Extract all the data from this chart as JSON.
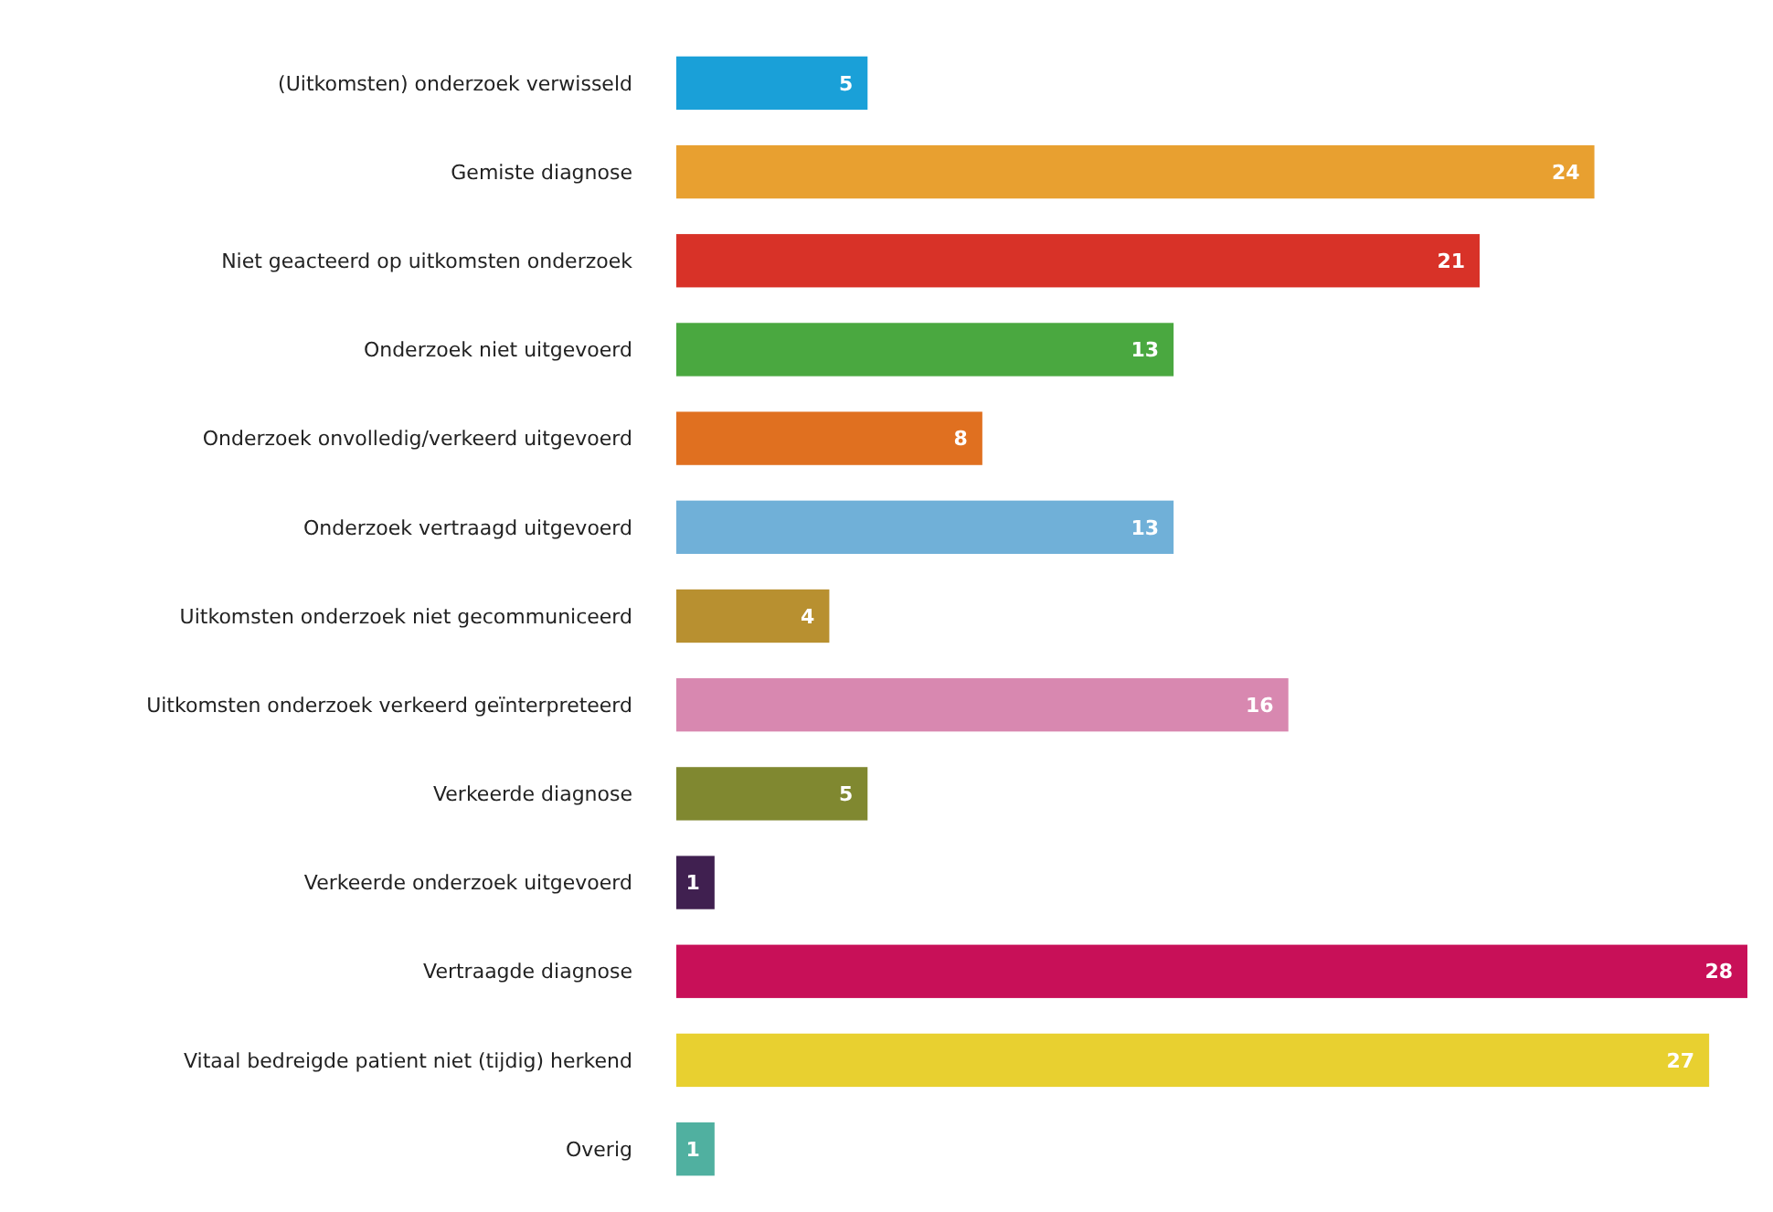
{
  "chart_data": {
    "type": "bar",
    "orientation": "horizontal",
    "data_labels": true,
    "categories": [
      "(Uitkomsten) onderzoek verwisseld",
      "Gemiste diagnose",
      "Niet geacteerd op uitkomsten onderzoek",
      "Onderzoek niet uitgevoerd",
      "Onderzoek onvolledig/verkeerd uitgevoerd",
      "Onderzoek vertraagd uitgevoerd",
      "Uitkomsten onderzoek niet gecommuniceerd",
      "Uitkomsten onderzoek verkeerd geïnterpreteerd",
      "Verkeerde diagnose",
      "Verkeerde onderzoek uitgevoerd",
      "Vertraagde diagnose",
      "Vitaal bedreigde patient niet (tijdig) herkend",
      "Overig"
    ],
    "values": [
      5,
      24,
      21,
      13,
      8,
      13,
      4,
      16,
      5,
      1,
      28,
      27,
      1
    ],
    "colors": [
      "#1aa0d8",
      "#e8a030",
      "#d83228",
      "#4aa840",
      "#e07020",
      "#70b0d8",
      "#b89030",
      "#d888b0",
      "#808830",
      "#402050",
      "#c81058",
      "#e8d030",
      "#50b0a0"
    ]
  }
}
